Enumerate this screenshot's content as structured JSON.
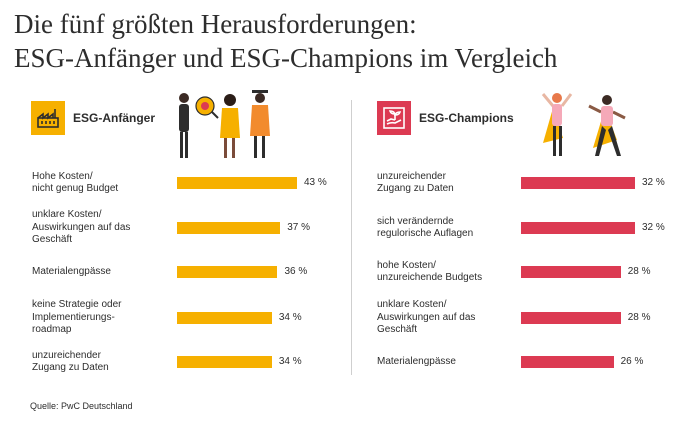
{
  "title_line1": "Die fünf größten Herausforderungen:",
  "title_line2": "ESG-Anfänger und ESG-Champions im Vergleich",
  "source": "Quelle: PwC Deutschland",
  "colors": {
    "beginner": "#f6b000",
    "champion": "#dc3a52",
    "text": "#2d2d2d"
  },
  "chart_data": [
    {
      "type": "bar",
      "orientation": "horizontal",
      "title": "ESG-Anfänger",
      "unit": "%",
      "categories": [
        "Hohe Kosten/\nnicht genug Budget",
        "unklare Kosten/\nAuswirkungen auf das\nGeschäft",
        "Materialengpässe",
        "keine Strategie oder\nImplementierungs-\nroadmap",
        "unzureichender\nZugang zu Daten"
      ],
      "values": [
        43,
        37,
        36,
        34,
        34
      ],
      "labels": [
        "43 %",
        "37 %",
        "36 %",
        "34 %",
        "34 %"
      ],
      "icon": "factory-icon"
    },
    {
      "type": "bar",
      "orientation": "horizontal",
      "title": "ESG-Champions",
      "unit": "%",
      "categories": [
        "unzureichender\nZugang zu Daten",
        "sich verändernde\nregulorische Auflagen",
        "hohe Kosten/\nunzureichende Budgets",
        "unklare Kosten/\nAuswirkungen auf das\nGeschäft",
        "Materialengpässe"
      ],
      "values": [
        32,
        32,
        28,
        28,
        26
      ],
      "labels": [
        "32 %",
        "32 %",
        "28 %",
        "28 %",
        "26 %"
      ],
      "icon": "plant-in-hand-icon"
    }
  ]
}
